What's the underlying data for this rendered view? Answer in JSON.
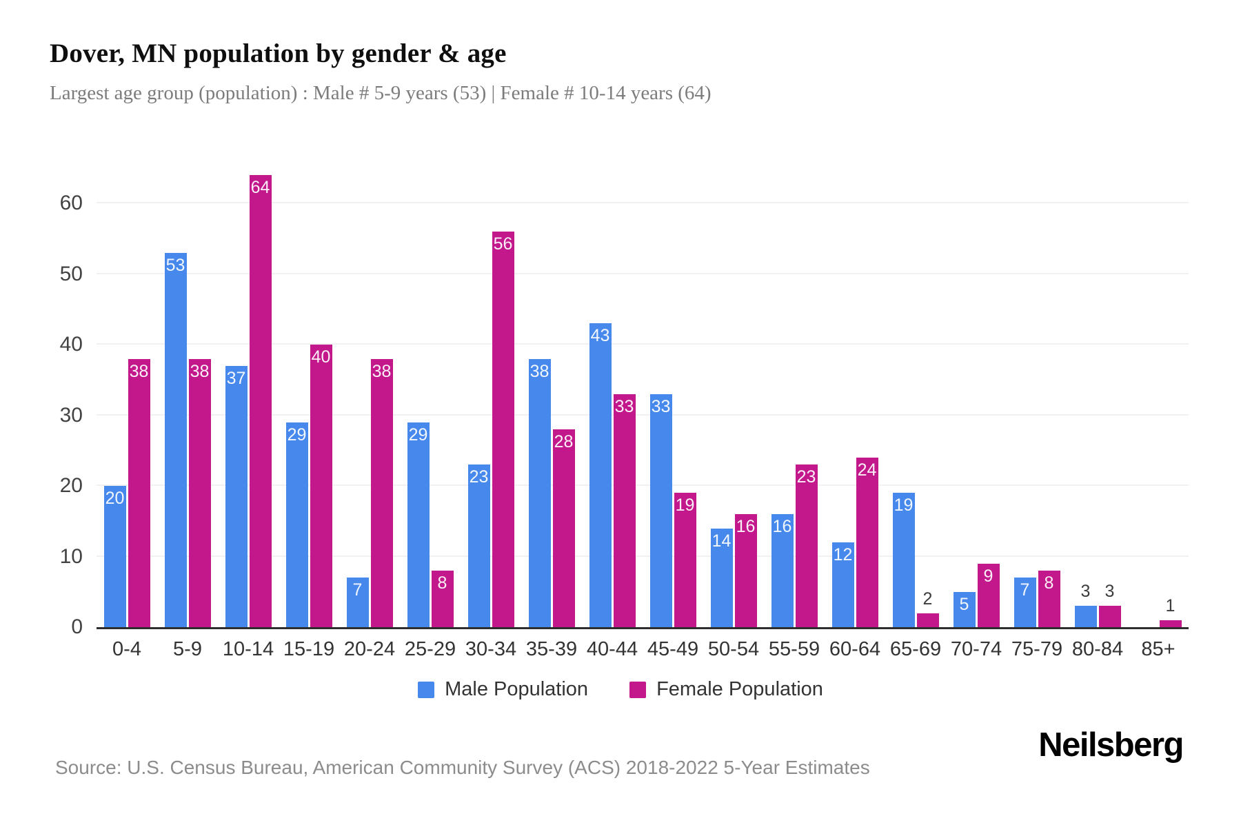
{
  "header": {
    "title": "Dover, MN population by gender & age",
    "subtitle": "Largest age group (population) : Male # 5-9 years (53) | Female # 10-14 years (64)"
  },
  "chart_data": {
    "type": "bar",
    "title": "Dover, MN population by gender & age",
    "categories": [
      "0-4",
      "5-9",
      "10-14",
      "15-19",
      "20-24",
      "25-29",
      "30-34",
      "35-39",
      "40-44",
      "45-49",
      "50-54",
      "55-59",
      "60-64",
      "65-69",
      "70-74",
      "75-79",
      "80-84",
      "85+"
    ],
    "series": [
      {
        "name": "Male Population",
        "color": "#4688EC",
        "values": [
          20,
          53,
          37,
          29,
          7,
          29,
          23,
          38,
          43,
          33,
          14,
          16,
          12,
          19,
          5,
          7,
          3,
          0
        ]
      },
      {
        "name": "Female Population",
        "color": "#C2188C",
        "values": [
          38,
          38,
          64,
          40,
          38,
          8,
          56,
          28,
          33,
          19,
          16,
          23,
          24,
          2,
          9,
          8,
          3,
          1
        ]
      }
    ],
    "xlabel": "",
    "ylabel": "",
    "yticks": [
      0,
      10,
      20,
      30,
      40,
      50,
      60
    ],
    "ylim": [
      0,
      64
    ],
    "grid": true,
    "legend_position": "bottom",
    "label_inside_min": 5
  },
  "legend": {
    "items": [
      {
        "label": "Male Population",
        "color": "#4688EC"
      },
      {
        "label": "Female Population",
        "color": "#C2188C"
      }
    ]
  },
  "footer": {
    "source": "Source: U.S. Census Bureau, American Community Survey (ACS) 2018-2022 5-Year Estimates",
    "brand": "Neilsberg"
  }
}
